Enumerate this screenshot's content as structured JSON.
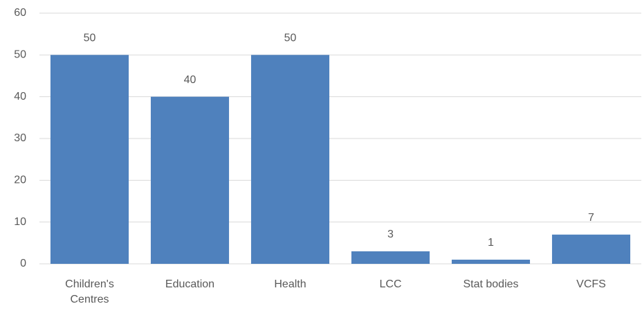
{
  "chart_data": {
    "type": "bar",
    "categories": [
      "Children's Centres",
      "Education",
      "Health",
      "LCC",
      "Stat bodies",
      "VCFS"
    ],
    "values": [
      50,
      40,
      50,
      3,
      1,
      7
    ],
    "color": "#4f81bd",
    "ylim": [
      0,
      60
    ],
    "yticks": [
      0,
      10,
      20,
      30,
      40,
      50,
      60
    ],
    "grid": true
  }
}
